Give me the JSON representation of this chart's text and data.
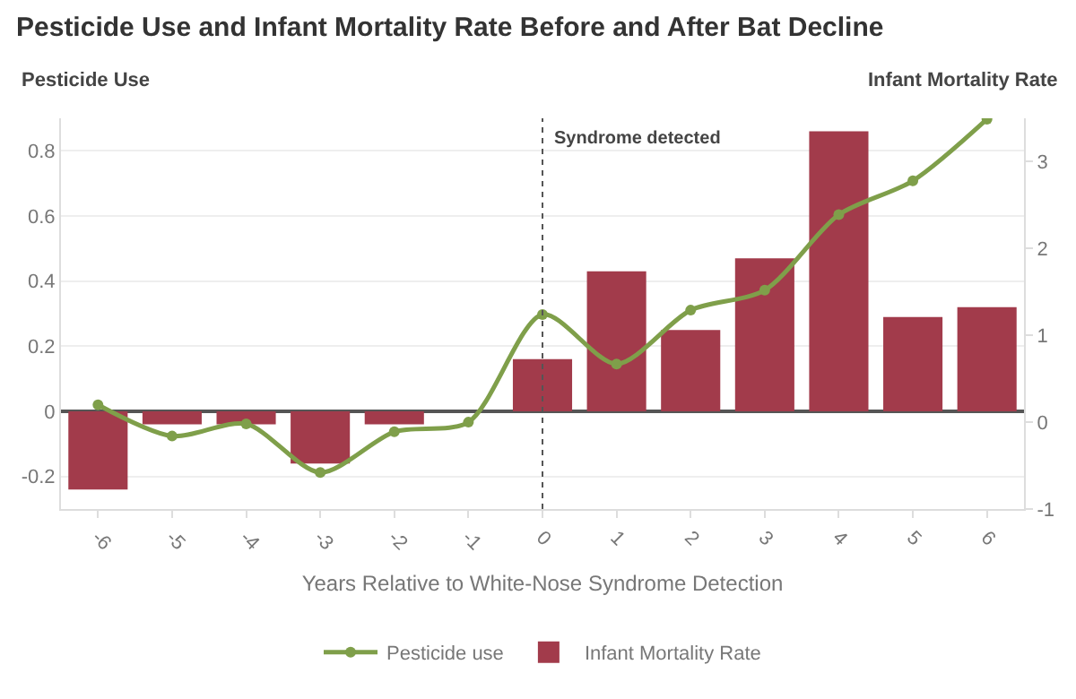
{
  "chart_data": {
    "type": "bar",
    "title": "Pesticide Use and Infant Mortality Rate Before and After Bat Decline",
    "xlabel": "Years Relative to White-Nose Syndrome Detection",
    "ylabel": "Pesticide Use",
    "y2label": "Infant Mortality Rate",
    "x": [
      -6,
      -5,
      -4,
      -3,
      -2,
      -1,
      0,
      1,
      2,
      3,
      4,
      5,
      6
    ],
    "xlim": [
      -6.5,
      6.5
    ],
    "xticks": [
      -6,
      -5,
      -4,
      -3,
      -2,
      -1,
      0,
      1,
      2,
      3,
      4,
      5,
      6
    ],
    "ylim": [
      -0.3,
      0.9
    ],
    "yticks": [
      -0.2,
      0,
      0.2,
      0.4,
      0.6,
      0.8
    ],
    "y2lim": [
      -1,
      3.5
    ],
    "y2ticks": [
      -1,
      0,
      1,
      2,
      3
    ],
    "series": [
      {
        "name": "Infant Mortality Rate",
        "color": "#a23b4b",
        "values": [
          -0.24,
          -0.04,
          -0.04,
          -0.16,
          -0.04,
          null,
          0.16,
          0.43,
          0.25,
          0.47,
          0.86,
          0.29,
          0.32
        ]
      },
      {
        "name": "Pesticide use",
        "type": "line",
        "axis": "y2",
        "color": "#7f9f4a",
        "marker": "circle",
        "values": [
          0.2,
          -0.16,
          -0.02,
          -0.58,
          -0.11,
          0.0,
          1.24,
          0.67,
          1.29,
          1.52,
          2.39,
          2.78,
          3.49
        ]
      }
    ],
    "ref_lines": [
      {
        "axis": "x",
        "value": 0,
        "label": "Syndrome detected",
        "line_style": "dotted",
        "color": "#555555"
      }
    ],
    "grid": "y",
    "legend": "bottom"
  }
}
